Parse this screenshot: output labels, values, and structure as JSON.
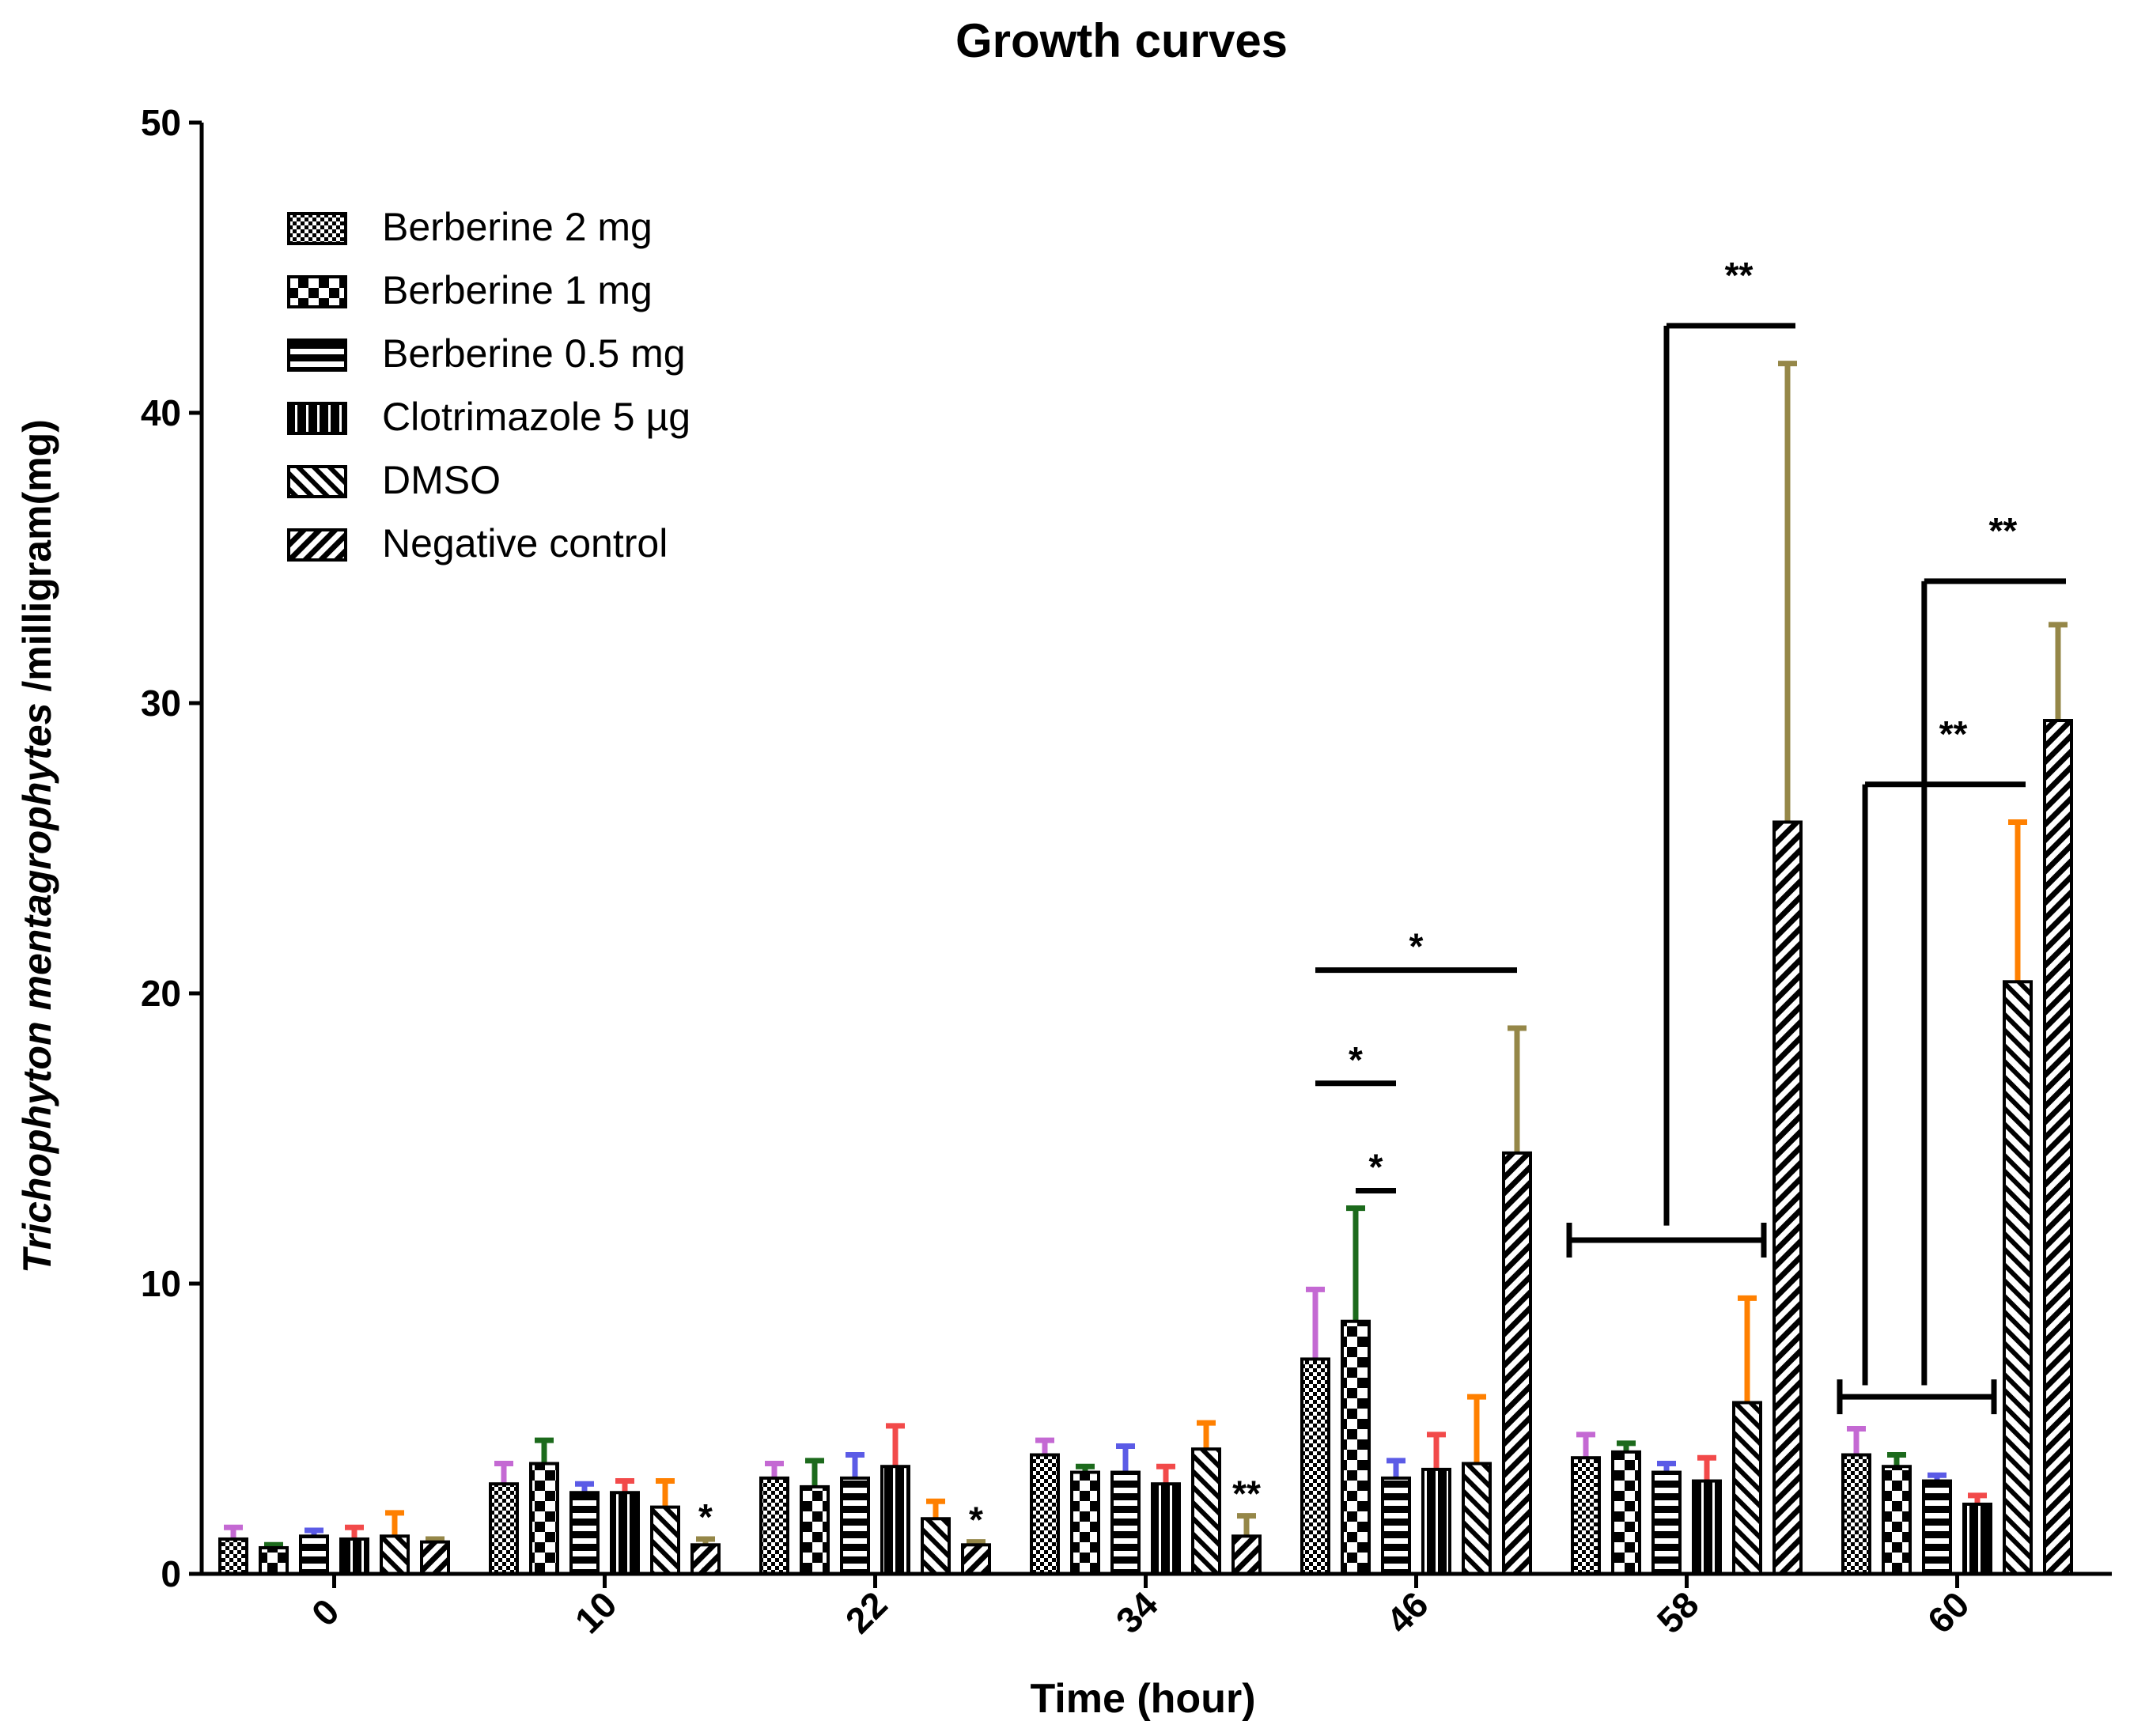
{
  "chart_data": {
    "type": "bar",
    "title": "Growth curves",
    "xlabel": "Time (hour)",
    "ylabel": {
      "italic_part": "Trichophyton mentagrophytes",
      "normal_part": " /milligram(mg)"
    },
    "ylim": [
      0,
      50
    ],
    "yticks": [
      "0",
      "10",
      "20",
      "30",
      "40",
      "50"
    ],
    "categories": [
      "0",
      "10",
      "22",
      "34",
      "46",
      "58",
      "60"
    ],
    "legend_position": "top-left",
    "series": [
      {
        "name": "Berberine 2 mg",
        "pattern": "dots",
        "error_color": "#c469d3",
        "values": [
          1.2,
          3.1,
          3.3,
          4.1,
          7.4,
          4.0,
          4.1
        ],
        "errors": [
          0.4,
          0.7,
          0.5,
          0.5,
          2.4,
          0.8,
          0.9
        ]
      },
      {
        "name": "Berberine 1 mg",
        "pattern": "checker",
        "error_color": "#1c6a1c",
        "values": [
          0.9,
          3.8,
          3.0,
          3.5,
          8.7,
          4.2,
          3.7
        ],
        "errors": [
          0.1,
          0.8,
          0.9,
          0.2,
          3.9,
          0.3,
          0.4
        ]
      },
      {
        "name": "Berberine 0.5 mg",
        "pattern": "horizontal",
        "error_color": "#5b5be6",
        "values": [
          1.3,
          2.8,
          3.3,
          3.5,
          3.3,
          3.5,
          3.2
        ],
        "errors": [
          0.2,
          0.3,
          0.8,
          0.9,
          0.6,
          0.3,
          0.2
        ]
      },
      {
        "name": "Clotrimazole 5 µg",
        "pattern": "vertical",
        "error_color": "#f24a4a",
        "values": [
          1.2,
          2.8,
          3.7,
          3.1,
          3.6,
          3.2,
          2.4
        ],
        "errors": [
          0.4,
          0.4,
          1.4,
          0.6,
          1.2,
          0.8,
          0.3
        ]
      },
      {
        "name": "DMSO",
        "pattern": "diagonal",
        "error_color": "#ff8000",
        "values": [
          1.3,
          2.3,
          1.9,
          4.3,
          3.8,
          5.9,
          20.4
        ],
        "errors": [
          0.8,
          0.9,
          0.6,
          0.9,
          2.3,
          3.6,
          5.5
        ]
      },
      {
        "name": "Negative control",
        "pattern": "diagonal-dense",
        "error_color": "#958748",
        "values": [
          1.1,
          1.0,
          1.0,
          1.3,
          14.5,
          25.9,
          29.4
        ],
        "errors": [
          0.1,
          0.2,
          0.1,
          0.7,
          4.3,
          15.8,
          3.3
        ]
      }
    ],
    "annotations": [
      {
        "category": 1,
        "series": 5,
        "label": "*"
      },
      {
        "category": 2,
        "series": 5,
        "label": "*"
      },
      {
        "category": 3,
        "series": 5,
        "label": "**"
      }
    ],
    "significance_brackets": [
      {
        "category": 4,
        "from_series": 1,
        "to_series": 2,
        "y": 13.2,
        "label": "*"
      },
      {
        "category": 4,
        "from_series": 0,
        "to_series": 2,
        "y": 16.9,
        "label": "*"
      },
      {
        "category": 4,
        "from_series": 0,
        "to_series": 5,
        "y": 20.8,
        "label": "*"
      }
    ],
    "group_brackets": [
      {
        "category": 5,
        "from_series": 0,
        "to_series": 4,
        "y": 11.5
      },
      {
        "category": 6,
        "from_series": 0,
        "to_series": 3,
        "y": 6.1
      }
    ],
    "connectors": [
      {
        "category": 5,
        "drop_y": 12.0,
        "top_y": 43.0,
        "to_series": 5,
        "label": "**"
      },
      {
        "category": 6,
        "drop_y": 6.5,
        "top_y": 34.2,
        "to_series": 5,
        "label": "**"
      },
      {
        "category": 6,
        "drop_y": 6.5,
        "top_y": 27.2,
        "to_series": 4,
        "label": "**"
      }
    ]
  }
}
